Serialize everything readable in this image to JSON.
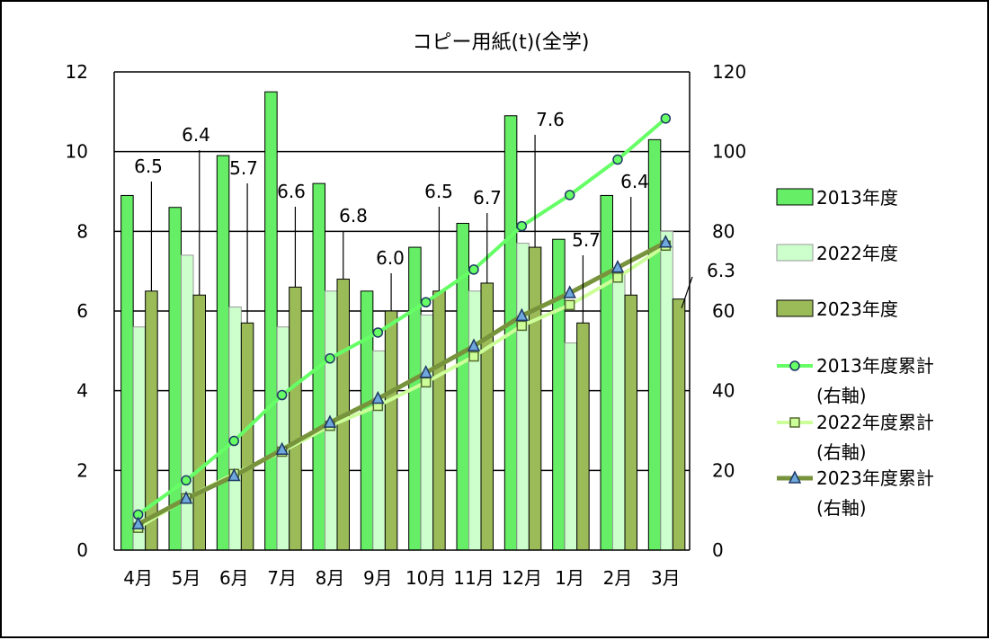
{
  "chart_data": {
    "type": "bar",
    "title": "コピー用紙(t)(全学)",
    "categories": [
      "4月",
      "5月",
      "6月",
      "7月",
      "8月",
      "9月",
      "10月",
      "11月",
      "12月",
      "1月",
      "2月",
      "3月"
    ],
    "y_left": {
      "ticks": [
        "0",
        "2",
        "4",
        "6",
        "8",
        "10",
        "12"
      ],
      "ylim": [
        0,
        12
      ]
    },
    "y_right": {
      "ticks": [
        "0",
        "20",
        "40",
        "60",
        "80",
        "100",
        "120"
      ],
      "ylim": [
        0,
        120
      ]
    },
    "grid": "horizontal major",
    "legend_position": "right",
    "bar_series": [
      {
        "name": "2013年度",
        "color": "#66EE66",
        "stroke": "#000000",
        "values": [
          8.9,
          8.6,
          9.9,
          11.5,
          9.2,
          6.5,
          7.6,
          8.2,
          10.9,
          7.8,
          8.9,
          10.3
        ]
      },
      {
        "name": "2022年度",
        "color": "#CCFFCC",
        "stroke": "#999999",
        "values": [
          5.6,
          7.4,
          6.1,
          5.6,
          6.5,
          5.0,
          5.9,
          6.5,
          7.7,
          5.2,
          6.9,
          8.0
        ]
      },
      {
        "name": "2023年度",
        "color": "#9BBB59",
        "stroke": "#000000",
        "values": [
          6.5,
          6.4,
          5.7,
          6.6,
          6.8,
          6.0,
          6.5,
          6.7,
          7.6,
          5.7,
          6.4,
          6.3
        ]
      }
    ],
    "line_series": [
      {
        "name": "2013年度累計",
        "axis_note": "(右軸)",
        "color": "#66FF66",
        "marker": "circle",
        "values": [
          8.9,
          17.5,
          27.4,
          38.9,
          48.1,
          54.6,
          62.2,
          70.4,
          81.3,
          89.1,
          98.0,
          108.3
        ]
      },
      {
        "name": "2022年度累計",
        "axis_note": "(右軸)",
        "color": "#CCFF99",
        "marker": "square",
        "values": [
          5.6,
          13.0,
          19.1,
          24.7,
          31.2,
          36.2,
          42.1,
          48.6,
          56.3,
          61.5,
          68.4,
          76.4
        ]
      },
      {
        "name": "2023年度累計",
        "axis_note": "(右軸)",
        "color": "#77933C",
        "marker": "triangle",
        "values": [
          6.5,
          12.9,
          18.6,
          25.2,
          32.0,
          38.0,
          44.5,
          51.2,
          58.8,
          64.5,
          70.9,
          77.2
        ]
      }
    ],
    "data_labels": [
      "6.5",
      "6.4",
      "5.7",
      "6.6",
      "6.8",
      "6.0",
      "6.5",
      "6.7",
      "7.6",
      "5.7",
      "6.4",
      "6.3"
    ]
  }
}
